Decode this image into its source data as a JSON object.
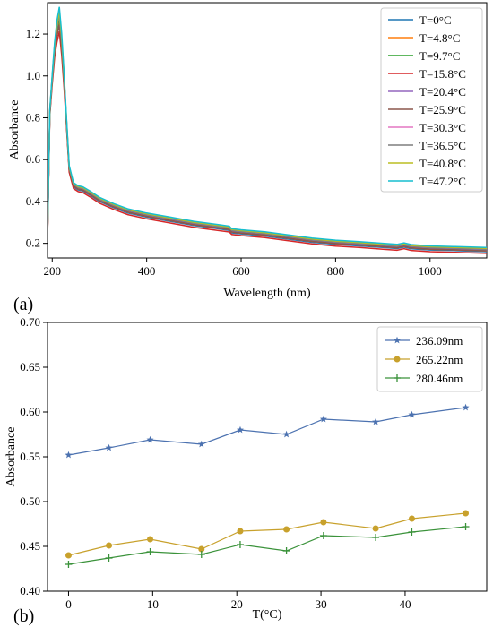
{
  "chart_data": [
    {
      "type": "line",
      "panel_label": "(a)",
      "xlabel": "Wavelength (nm)",
      "ylabel": "Absorbance",
      "xlim": [
        190,
        1120
      ],
      "ylim": [
        0.13,
        1.35
      ],
      "xticks": [
        200,
        400,
        600,
        800,
        1000
      ],
      "yticks": [
        0.2,
        0.4,
        0.6,
        0.8,
        1.0,
        1.2
      ],
      "xtick_labels": [
        "200",
        "400",
        "600",
        "800",
        "1000"
      ],
      "ytick_labels": [
        "0.2",
        "0.4",
        "0.6",
        "0.8",
        "1.0",
        "1.2"
      ],
      "legend_position": "top-right",
      "grid": false,
      "base_curve": {
        "x": [
          190,
          195,
          200,
          205,
          210,
          215,
          220,
          225,
          230,
          236,
          245,
          255,
          265,
          280,
          300,
          330,
          360,
          400,
          450,
          500,
          550,
          575,
          580,
          600,
          650,
          700,
          750,
          800,
          850,
          900,
          930,
          945,
          960,
          1000,
          1050,
          1120
        ],
        "y": [
          0.22,
          0.82,
          0.98,
          1.12,
          1.21,
          1.27,
          1.15,
          0.98,
          0.78,
          0.55,
          0.47,
          0.455,
          0.45,
          0.43,
          0.4,
          0.37,
          0.345,
          0.325,
          0.305,
          0.285,
          0.27,
          0.262,
          0.25,
          0.245,
          0.235,
          0.22,
          0.205,
          0.195,
          0.188,
          0.18,
          0.175,
          0.182,
          0.174,
          0.168,
          0.165,
          0.16
        ]
      },
      "series": [
        {
          "name": "T=0°C",
          "color": "#1f77b4",
          "offset": 0.0,
          "peak_offset": 0.0
        },
        {
          "name": "T=4.8°C",
          "color": "#ff7f0e",
          "offset": 0.004,
          "peak_offset": -0.01
        },
        {
          "name": "T=9.7°C",
          "color": "#2ca02c",
          "offset": 0.007,
          "peak_offset": 0.0
        },
        {
          "name": "T=15.8°C",
          "color": "#d62728",
          "offset": -0.008,
          "peak_offset": -0.05
        },
        {
          "name": "T=20.4°C",
          "color": "#9467bd",
          "offset": 0.01,
          "peak_offset": 0.01
        },
        {
          "name": "T=25.9°C",
          "color": "#8c564b",
          "offset": 0.004,
          "peak_offset": -0.03
        },
        {
          "name": "T=30.3°C",
          "color": "#e377c2",
          "offset": 0.014,
          "peak_offset": 0.02
        },
        {
          "name": "T=36.5°C",
          "color": "#7f7f7f",
          "offset": 0.012,
          "peak_offset": 0.01
        },
        {
          "name": "T=40.8°C",
          "color": "#bcbd22",
          "offset": 0.016,
          "peak_offset": 0.02
        },
        {
          "name": "T=47.2°C",
          "color": "#17becf",
          "offset": 0.02,
          "peak_offset": 0.04
        }
      ]
    },
    {
      "type": "line",
      "panel_label": "(b)",
      "xlabel": "T(°C)",
      "ylabel": "Absorbance",
      "xlim": [
        -2.5,
        49.7
      ],
      "ylim": [
        0.4,
        0.7
      ],
      "xticks": [
        0,
        10,
        20,
        30,
        40
      ],
      "yticks": [
        0.4,
        0.45,
        0.5,
        0.55,
        0.6,
        0.65,
        0.7
      ],
      "xtick_labels": [
        "0",
        "10",
        "20",
        "30",
        "40"
      ],
      "ytick_labels": [
        "0.40",
        "0.45",
        "0.50",
        "0.55",
        "0.60",
        "0.65",
        "0.70"
      ],
      "legend_position": "top-right",
      "grid": false,
      "x": [
        0,
        4.8,
        9.7,
        15.8,
        20.4,
        25.9,
        30.3,
        36.5,
        40.8,
        47.2
      ],
      "series": [
        {
          "name": "236.09nm",
          "color": "#4c72b0",
          "marker": "star",
          "values": [
            0.552,
            0.56,
            0.569,
            0.564,
            0.58,
            0.575,
            0.592,
            0.589,
            0.597,
            0.605
          ]
        },
        {
          "name": "265.22nm",
          "color": "#c8a12c",
          "marker": "circle",
          "values": [
            0.44,
            0.451,
            0.458,
            0.447,
            0.467,
            0.469,
            0.477,
            0.47,
            0.481,
            0.487
          ]
        },
        {
          "name": "280.46nm",
          "color": "#3a923a",
          "marker": "plus",
          "values": [
            0.43,
            0.437,
            0.444,
            0.441,
            0.452,
            0.445,
            0.462,
            0.46,
            0.466,
            0.472
          ]
        }
      ]
    }
  ]
}
